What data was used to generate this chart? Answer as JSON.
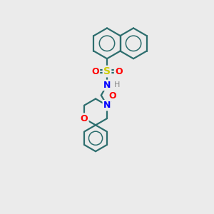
{
  "background_color": "#ebebeb",
  "bond_color": "#2d6e6e",
  "atom_colors": {
    "S": "#cccc00",
    "O": "#ff0000",
    "N": "#0000ff",
    "H": "#888888"
  },
  "line_width": 1.6,
  "figsize": [
    3.0,
    3.0
  ],
  "dpi": 100
}
